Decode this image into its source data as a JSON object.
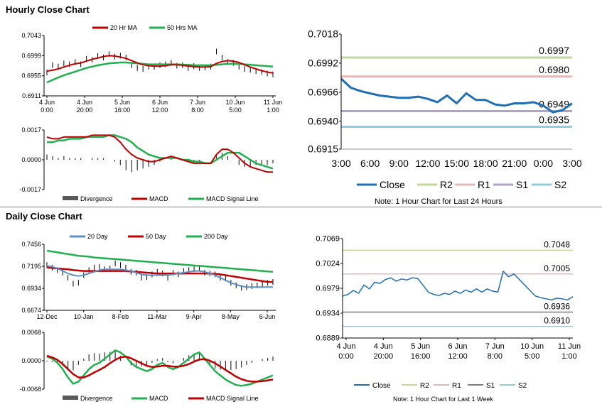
{
  "section_titles": {
    "hourly": "Hourly Close Chart",
    "daily": "Daily Close Chart"
  },
  "notes": {
    "hourly": "Note: 1 Hour Chart for Last 24 Hours",
    "daily": "Note: 1 Hour Chart for Last 1 Week"
  },
  "colors": {
    "close": "#1f6fb6",
    "r2": "#c3d69b",
    "r1": "#e6b9b8",
    "s1": "#b3a2c7",
    "s2": "#93cddd",
    "ma_short": "#c00000",
    "ma_long": "#20b050",
    "ma_20day": "#5b8fc9",
    "divergence": "#595959"
  },
  "chart_data": [
    {
      "id": "hourly_price",
      "type": "line",
      "y_ticks": [
        "0.7043",
        "0.6999",
        "0.6955",
        "0.6911"
      ],
      "ylim": [
        0.6911,
        0.7043
      ],
      "x_ticks": [
        [
          "4 Jun",
          "0:00"
        ],
        [
          "4 Jun",
          "20:00"
        ],
        [
          "5 Jun",
          "16:00"
        ],
        [
          "6 Jun",
          "12:00"
        ],
        [
          "7 Jun",
          "8:00"
        ],
        [
          "10 Jun",
          "5:00"
        ],
        [
          "11 Jun",
          "1:00"
        ]
      ],
      "legend": [
        "20 Hr MA",
        "50 Hrs MA"
      ],
      "price": [
        0.6962,
        0.6978,
        0.6975,
        0.6982,
        0.698,
        0.6985,
        0.698,
        0.6992,
        0.699,
        0.6998,
        0.6995,
        0.7002,
        0.6997,
        0.6999,
        0.6995,
        0.6978,
        0.6972,
        0.697,
        0.6975,
        0.6975,
        0.6978,
        0.698,
        0.6983,
        0.6977,
        0.6978,
        0.6972,
        0.6976,
        0.6972,
        0.6973,
        0.6975,
        0.7008,
        0.6995,
        0.6985,
        0.6983,
        0.6975,
        0.697,
        0.6968,
        0.6965,
        0.6963,
        0.696,
        0.6958
      ],
      "ma_short": [
        0.6965,
        0.6967,
        0.697,
        0.6974,
        0.6978,
        0.6981,
        0.6983,
        0.6987,
        0.6991,
        0.6994,
        0.6997,
        0.6999,
        0.6998,
        0.6996,
        0.6993,
        0.6988,
        0.6983,
        0.6979,
        0.6977,
        0.6976,
        0.6976,
        0.6977,
        0.6979,
        0.6979,
        0.6978,
        0.6976,
        0.6975,
        0.6974,
        0.6974,
        0.6975,
        0.6982,
        0.6986,
        0.6988,
        0.6987,
        0.6984,
        0.6979,
        0.6974,
        0.697,
        0.6966,
        0.6963,
        0.6961
      ],
      "ma_long": [
        0.694,
        0.6946,
        0.6951,
        0.6956,
        0.696,
        0.6964,
        0.6968,
        0.6972,
        0.6975,
        0.6978,
        0.698,
        0.6982,
        0.6983,
        0.6984,
        0.6984,
        0.6983,
        0.6982,
        0.6981,
        0.698,
        0.698,
        0.698,
        0.698,
        0.698,
        0.698,
        0.6979,
        0.6979,
        0.6978,
        0.6978,
        0.6978,
        0.6978,
        0.6979,
        0.698,
        0.6981,
        0.6981,
        0.6981,
        0.698,
        0.6979,
        0.6978,
        0.6977,
        0.6976,
        0.6975
      ]
    },
    {
      "id": "hourly_macd",
      "type": "line",
      "y_ticks": [
        "0.0017",
        "0.0000",
        "-0.0017"
      ],
      "ylim": [
        -0.0017,
        0.0017
      ],
      "legend": [
        "Divergence",
        "MACD",
        "MACD Signal Line"
      ],
      "macd": [
        0.0013,
        0.0012,
        0.0012,
        0.0013,
        0.0013,
        0.0013,
        0.0013,
        0.0013,
        0.0014,
        0.0014,
        0.0014,
        0.0014,
        0.0013,
        0.001,
        0.0006,
        0.0003,
        0.0001,
        0.0,
        -0.0001,
        -0.0001,
        0.0,
        0.0001,
        0.0002,
        0.0001,
        0.0,
        -0.0001,
        -0.0002,
        -0.0002,
        -0.0002,
        -0.0002,
        0.0003,
        0.0006,
        0.0006,
        0.0004,
        0.0001,
        -0.0002,
        -0.0004,
        -0.0005,
        -0.0006,
        -0.0007,
        -0.0007
      ],
      "signal": [
        0.001,
        0.001,
        0.0011,
        0.0011,
        0.0012,
        0.0012,
        0.0012,
        0.0013,
        0.0013,
        0.0013,
        0.0013,
        0.0014,
        0.0014,
        0.0013,
        0.0012,
        0.001,
        0.0007,
        0.0005,
        0.0003,
        0.0002,
        0.0001,
        0.0001,
        0.0001,
        0.0001,
        0.0,
        0.0,
        -0.0001,
        -0.0001,
        -0.0002,
        -0.0002,
        0.0,
        0.0002,
        0.0004,
        0.0004,
        0.0004,
        0.0002,
        0.0,
        -0.0002,
        -0.0003,
        -0.0004,
        -0.0005
      ],
      "divergence": [
        0.0003,
        0.0002,
        0.0001,
        0.0002,
        0.0001,
        0.0001,
        0.0001,
        0.0,
        0.0001,
        0.0001,
        0.0001,
        0.0,
        -0.0001,
        -0.0003,
        -0.0006,
        -0.0007,
        -0.0006,
        -0.0005,
        -0.0004,
        -0.0003,
        -0.0001,
        0.0,
        0.0001,
        0.0,
        0.0,
        -0.0001,
        -0.0001,
        -0.0001,
        0.0,
        0.0,
        0.0003,
        0.0004,
        0.0002,
        0.0,
        -0.0003,
        -0.0004,
        -0.0004,
        -0.0003,
        -0.0003,
        -0.0003,
        -0.0002
      ]
    },
    {
      "id": "hourly_24h",
      "type": "line",
      "y_ticks": [
        "0.7018",
        "0.6992",
        "0.6966",
        "0.6940",
        "0.6915"
      ],
      "ylim": [
        0.6915,
        0.7018
      ],
      "x_ticks": [
        "3:00",
        "6:00",
        "9:00",
        "12:00",
        "15:00",
        "18:00",
        "21:00",
        "0:00",
        "3:00"
      ],
      "close": [
        0.6978,
        0.697,
        0.6967,
        0.6965,
        0.6963,
        0.6962,
        0.6961,
        0.6961,
        0.6962,
        0.696,
        0.6957,
        0.6963,
        0.6956,
        0.6965,
        0.6959,
        0.6959,
        0.6955,
        0.6954,
        0.6956,
        0.6956,
        0.6957,
        0.6954,
        0.6948,
        0.695,
        0.6956
      ],
      "levels": [
        {
          "name": "R2",
          "value": 0.6997,
          "label": "0.6997"
        },
        {
          "name": "R1",
          "value": 0.698,
          "label": "0.6980"
        },
        {
          "name": "S1",
          "value": 0.6949,
          "label": "0.6949"
        },
        {
          "name": "S2",
          "value": 0.6935,
          "label": "0.6935"
        }
      ],
      "legend": [
        "Close",
        "R2",
        "R1",
        "S1",
        "S2"
      ]
    },
    {
      "id": "daily_price",
      "type": "line",
      "y_ticks": [
        "0.7456",
        "0.7195",
        "0.6934",
        "0.6674"
      ],
      "ylim": [
        0.6674,
        0.7456
      ],
      "x_ticks": [
        "12-Dec",
        "10-Jan",
        "8-Feb",
        "11-Mar",
        "9-Apr",
        "8-May",
        "6-Jun"
      ],
      "legend": [
        "20 Day",
        "50 Day",
        "200 Day"
      ],
      "price": [
        0.721,
        0.718,
        0.715,
        0.712,
        0.706,
        0.699,
        0.7,
        0.709,
        0.715,
        0.718,
        0.719,
        0.716,
        0.717,
        0.723,
        0.721,
        0.718,
        0.713,
        0.712,
        0.706,
        0.707,
        0.71,
        0.713,
        0.711,
        0.706,
        0.712,
        0.71,
        0.714,
        0.715,
        0.716,
        0.717,
        0.712,
        0.711,
        0.71,
        0.706,
        0.705,
        0.7,
        0.697,
        0.694,
        0.695,
        0.696,
        0.697,
        0.698,
        0.7,
        0.701
      ],
      "ma_20day": [
        0.72,
        0.719,
        0.717,
        0.714,
        0.711,
        0.709,
        0.708,
        0.709,
        0.711,
        0.713,
        0.715,
        0.716,
        0.716,
        0.716,
        0.716,
        0.715,
        0.714,
        0.712,
        0.71,
        0.709,
        0.709,
        0.709,
        0.709,
        0.709,
        0.71,
        0.711,
        0.712,
        0.713,
        0.714,
        0.714,
        0.713,
        0.711,
        0.709,
        0.706,
        0.703,
        0.7,
        0.698,
        0.696,
        0.695,
        0.695,
        0.695,
        0.695,
        0.695,
        0.695
      ],
      "ma_50day": [
        0.718,
        0.7175,
        0.717,
        0.7165,
        0.716,
        0.715,
        0.7145,
        0.714,
        0.714,
        0.714,
        0.714,
        0.714,
        0.714,
        0.714,
        0.714,
        0.714,
        0.7135,
        0.713,
        0.7125,
        0.712,
        0.7115,
        0.711,
        0.711,
        0.711,
        0.711,
        0.711,
        0.711,
        0.711,
        0.711,
        0.711,
        0.711,
        0.711,
        0.7105,
        0.71,
        0.709,
        0.708,
        0.707,
        0.706,
        0.705,
        0.704,
        0.703,
        0.702,
        0.701,
        0.701
      ],
      "ma_200day": [
        0.738,
        0.737,
        0.736,
        0.735,
        0.734,
        0.733,
        0.732,
        0.7315,
        0.731,
        0.73,
        0.7295,
        0.729,
        0.7285,
        0.728,
        0.7275,
        0.727,
        0.7265,
        0.726,
        0.7255,
        0.725,
        0.7245,
        0.724,
        0.7235,
        0.723,
        0.7225,
        0.722,
        0.7215,
        0.721,
        0.7205,
        0.72,
        0.7195,
        0.719,
        0.7185,
        0.718,
        0.7175,
        0.717,
        0.7165,
        0.716,
        0.7155,
        0.715,
        0.7145,
        0.714,
        0.7135,
        0.713
      ]
    },
    {
      "id": "daily_macd",
      "type": "line",
      "y_ticks": [
        "0.0068",
        "0.0000",
        "-0.0068"
      ],
      "ylim": [
        -0.0068,
        0.0068
      ],
      "legend": [
        "Divergence",
        "MACD",
        "MACD Signal Line"
      ],
      "macd": [
        0.001,
        0.0005,
        -0.0005,
        -0.002,
        -0.004,
        -0.0055,
        -0.005,
        -0.0035,
        -0.002,
        -0.001,
        -0.0005,
        0.0005,
        0.0015,
        0.0025,
        0.002,
        0.001,
        -0.0005,
        -0.0015,
        -0.002,
        -0.0025,
        -0.002,
        -0.001,
        -0.0005,
        -0.0015,
        -0.002,
        -0.0015,
        -0.0005,
        0.0005,
        0.0015,
        0.002,
        0.0005,
        -0.001,
        -0.0025,
        -0.0035,
        -0.0045,
        -0.0052,
        -0.0058,
        -0.006,
        -0.0058,
        -0.0055,
        -0.005,
        -0.0045,
        -0.004,
        -0.0035
      ],
      "signal": [
        0.0012,
        0.0008,
        0.0002,
        -0.0008,
        -0.002,
        -0.0032,
        -0.004,
        -0.004,
        -0.0035,
        -0.0028,
        -0.0022,
        -0.0015,
        -0.0006,
        0.0002,
        0.0008,
        0.001,
        0.0006,
        0.0,
        -0.0006,
        -0.0012,
        -0.0015,
        -0.0014,
        -0.0012,
        -0.0012,
        -0.0014,
        -0.0014,
        -0.0012,
        -0.0008,
        -0.0002,
        0.0003,
        0.0004,
        0.0,
        -0.0006,
        -0.0014,
        -0.0022,
        -0.003,
        -0.0038,
        -0.0044,
        -0.0048,
        -0.005,
        -0.005,
        -0.0049,
        -0.0047,
        -0.0045
      ],
      "divergence": [
        -0.0002,
        -0.0003,
        -0.0007,
        -0.0012,
        -0.002,
        -0.0023,
        -0.001,
        0.0005,
        0.0015,
        0.0018,
        0.0017,
        0.002,
        0.0021,
        0.0023,
        0.0012,
        0.0,
        -0.0011,
        -0.0015,
        -0.0014,
        -0.0013,
        -0.0005,
        0.0004,
        0.0007,
        -0.0003,
        -0.0006,
        -0.0001,
        0.0007,
        0.0013,
        0.0017,
        0.0017,
        0.0001,
        -0.001,
        -0.0019,
        -0.0021,
        -0.0023,
        -0.0022,
        -0.002,
        -0.0016,
        -0.001,
        -0.0005,
        0.0,
        0.0004,
        0.0007,
        0.001
      ]
    },
    {
      "id": "weekly_hourly",
      "type": "line",
      "y_ticks": [
        "0.7069",
        "0.7024",
        "0.6979",
        "0.6934",
        "0.6889"
      ],
      "ylim": [
        0.6889,
        0.7069
      ],
      "x_ticks": [
        [
          "4 Jun",
          "0:00"
        ],
        [
          "4 Jun",
          "20:00"
        ],
        [
          "5 Jun",
          "16:00"
        ],
        [
          "6 Jun",
          "12:00"
        ],
        [
          "7 Jun",
          "8:00"
        ],
        [
          "10 Jun",
          "5:00"
        ],
        [
          "11 Jun",
          "1:00"
        ]
      ],
      "close": [
        0.6965,
        0.6968,
        0.6975,
        0.697,
        0.6985,
        0.6978,
        0.699,
        0.6988,
        0.6995,
        0.6998,
        0.6992,
        0.6996,
        0.6994,
        0.6998,
        0.6997,
        0.6985,
        0.6972,
        0.6968,
        0.6966,
        0.697,
        0.6968,
        0.6974,
        0.697,
        0.6976,
        0.6972,
        0.6978,
        0.6972,
        0.6978,
        0.6974,
        0.6972,
        0.701,
        0.7,
        0.7005,
        0.6995,
        0.6985,
        0.6975,
        0.6965,
        0.6962,
        0.696,
        0.6958,
        0.6961,
        0.696,
        0.6958,
        0.6964
      ],
      "levels": [
        {
          "name": "R2",
          "value": 0.7048,
          "label": "0.7048"
        },
        {
          "name": "R1",
          "value": 0.7005,
          "label": "0.7005"
        },
        {
          "name": "S1",
          "value": 0.6936,
          "label": "0.6936"
        },
        {
          "name": "S2",
          "value": 0.691,
          "label": "0.6910"
        }
      ],
      "legend": [
        "Close",
        "R2",
        "R1",
        "S1",
        "S2"
      ]
    }
  ]
}
